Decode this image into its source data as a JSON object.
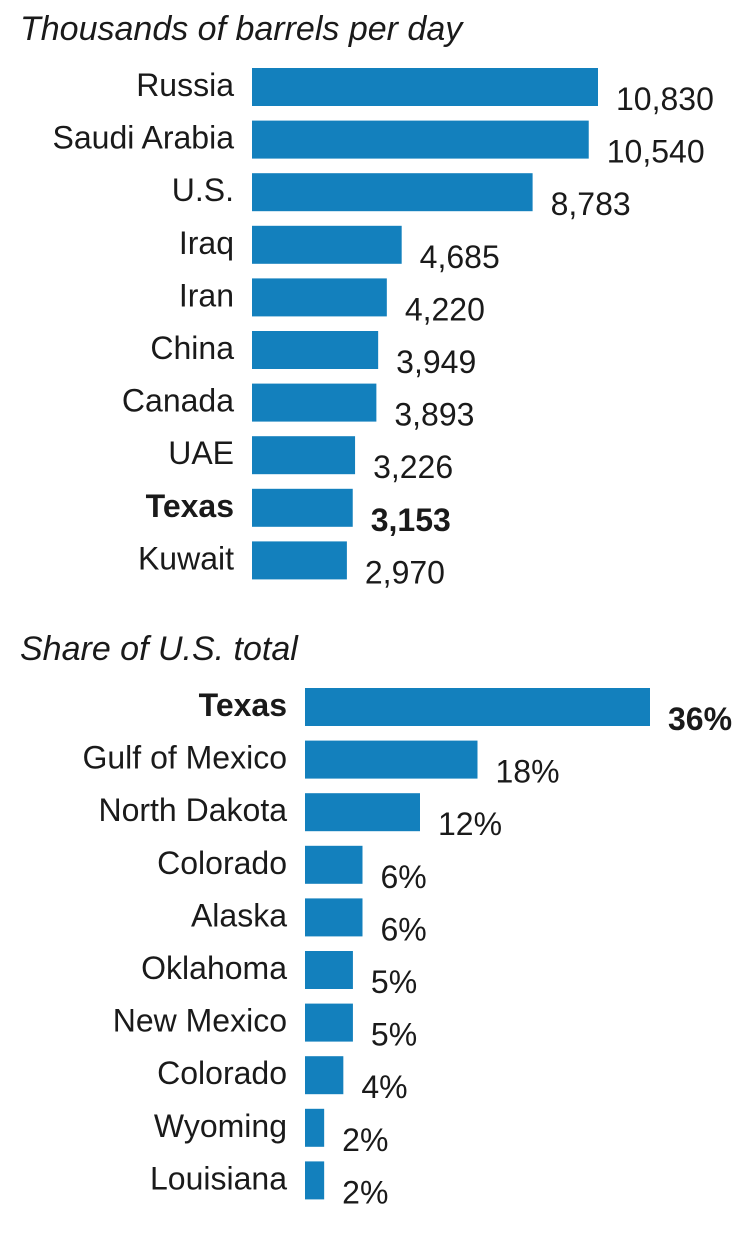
{
  "bar_color": "#1380bd",
  "text_color": "#1a1a1a",
  "chart_data": [
    {
      "type": "bar",
      "orientation": "horizontal",
      "title": "Thousands of barrels per day",
      "xlabel": "",
      "ylabel": "",
      "grid": false,
      "categories": [
        "Russia",
        "Saudi Arabia",
        "U.S.",
        "Iraq",
        "Iran",
        "China",
        "Canada",
        "UAE",
        "Texas",
        "Kuwait"
      ],
      "values": [
        10830,
        10540,
        8783,
        4685,
        4220,
        3949,
        3893,
        3226,
        3153,
        2970
      ],
      "value_labels": [
        "10,830",
        "10,540",
        "8,783",
        "4,685",
        "4,220",
        "3,949",
        "3,893",
        "3,226",
        "3,153",
        "2,970"
      ],
      "highlight": "Texas"
    },
    {
      "type": "bar",
      "orientation": "horizontal",
      "title": "Share of U.S. total",
      "xlabel": "",
      "ylabel": "",
      "grid": false,
      "categories": [
        "Texas",
        "Gulf of Mexico",
        "North Dakota",
        "Colorado",
        "Alaska",
        "Oklahoma",
        "New Mexico",
        "Colorado",
        "Wyoming",
        "Louisiana"
      ],
      "values": [
        36,
        18,
        12,
        6,
        6,
        5,
        5,
        4,
        2,
        2
      ],
      "value_labels": [
        "36%",
        "18%",
        "12%",
        "6%",
        "6%",
        "5%",
        "5%",
        "4%",
        "2%",
        "2%"
      ],
      "highlight": "Texas"
    }
  ]
}
